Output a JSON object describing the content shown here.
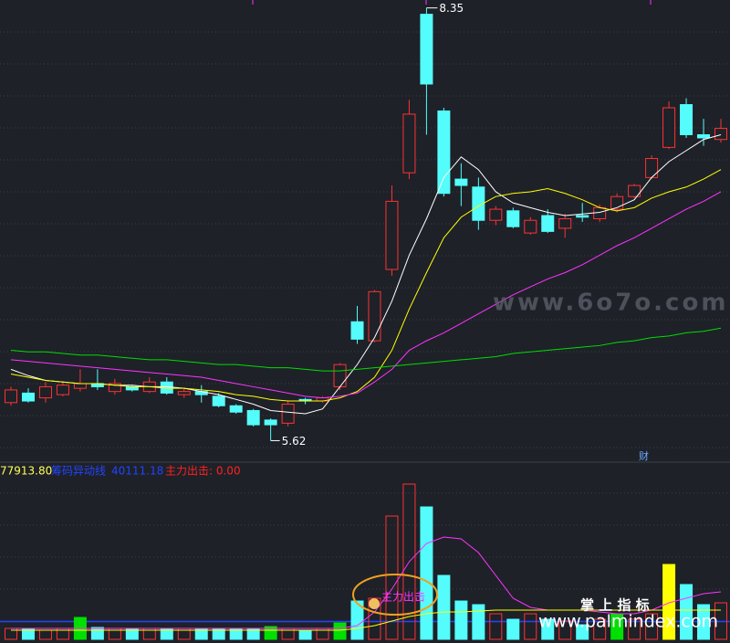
{
  "chart_data": [
    {
      "type": "candlestick",
      "open": [
        5.86,
        5.92,
        5.89,
        5.91,
        5.95,
        5.98,
        5.93,
        5.96,
        5.93,
        5.99,
        5.91,
        5.93,
        5.9,
        5.84,
        5.81,
        5.75,
        5.73,
        5.88,
        5.87,
        5.96,
        6.37,
        6.25,
        6.7,
        7.31,
        8.31,
        7.7,
        7.27,
        7.22,
        7.01,
        7.07,
        6.93,
        7.04,
        6.96,
        7.04,
        7.02,
        7.08,
        7.16,
        7.28,
        7.47,
        7.74,
        7.55,
        7.52
      ],
      "high": [
        5.96,
        5.95,
        5.99,
        5.99,
        6.07,
        6.07,
        6.01,
        5.97,
        6.02,
        6.02,
        5.95,
        5.97,
        5.92,
        5.85,
        5.82,
        5.76,
        5.87,
        5.89,
        5.9,
        6.11,
        6.47,
        6.57,
        7.23,
        7.77,
        8.35,
        7.72,
        7.37,
        7.28,
        7.1,
        7.09,
        7.03,
        7.08,
        7.05,
        7.12,
        7.11,
        7.18,
        7.24,
        7.42,
        7.76,
        7.78,
        7.65,
        7.65
      ],
      "low": [
        5.84,
        5.86,
        5.86,
        5.9,
        5.93,
        5.94,
        5.91,
        5.93,
        5.92,
        5.91,
        5.89,
        5.86,
        5.83,
        5.79,
        5.71,
        5.62,
        5.71,
        5.85,
        5.86,
        5.94,
        6.23,
        6.24,
        6.66,
        7.27,
        7.55,
        7.16,
        7.1,
        6.95,
        6.98,
        6.96,
        6.92,
        6.93,
        6.9,
        7.0,
        7.0,
        7.06,
        7.15,
        7.27,
        7.46,
        7.53,
        7.48,
        7.5
      ],
      "close": [
        5.94,
        5.87,
        5.96,
        5.97,
        5.98,
        5.96,
        5.98,
        5.94,
        5.99,
        5.92,
        5.93,
        5.91,
        5.84,
        5.8,
        5.72,
        5.72,
        5.85,
        5.87,
        5.89,
        6.1,
        6.26,
        6.56,
        7.13,
        7.68,
        7.87,
        7.18,
        7.23,
        7.01,
        7.08,
        6.97,
        7.01,
        6.94,
        7.02,
        7.03,
        7.09,
        7.16,
        7.23,
        7.4,
        7.72,
        7.55,
        7.53,
        7.59
      ],
      "up_color": "#ff3232",
      "down_color": "#54fcfc",
      "ylim": [
        5.49,
        8.4
      ],
      "lines": [
        {
          "color": "#ffffff",
          "values": [
            6.07,
            6.03,
            6.0,
            5.99,
            5.98,
            5.98,
            5.97,
            5.97,
            5.96,
            5.96,
            5.95,
            5.93,
            5.91,
            5.88,
            5.85,
            5.81,
            5.8,
            5.79,
            5.82,
            5.96,
            6.1,
            6.27,
            6.5,
            6.79,
            7.02,
            7.28,
            7.41,
            7.33,
            7.19,
            7.12,
            7.09,
            7.06,
            7.04,
            7.05,
            7.06,
            7.09,
            7.14,
            7.28,
            7.38,
            7.45,
            7.52,
            7.55
          ]
        },
        {
          "color": "#ffff00",
          "values": [
            6.04,
            6.02,
            6.0,
            5.99,
            5.98,
            5.98,
            5.97,
            5.96,
            5.96,
            5.95,
            5.95,
            5.94,
            5.93,
            5.91,
            5.9,
            5.88,
            5.87,
            5.87,
            5.87,
            5.89,
            5.93,
            6.02,
            6.19,
            6.45,
            6.68,
            6.9,
            7.03,
            7.1,
            7.16,
            7.18,
            7.19,
            7.21,
            7.18,
            7.14,
            7.09,
            7.07,
            7.09,
            7.15,
            7.19,
            7.22,
            7.27,
            7.33
          ]
        },
        {
          "color": "#ff33ff",
          "values": [
            6.13,
            6.12,
            6.11,
            6.1,
            6.09,
            6.08,
            6.07,
            6.06,
            6.05,
            6.04,
            6.03,
            6.02,
            6.0,
            5.98,
            5.96,
            5.94,
            5.92,
            5.9,
            5.89,
            5.9,
            5.92,
            5.99,
            6.07,
            6.19,
            6.25,
            6.3,
            6.36,
            6.42,
            6.48,
            6.54,
            6.59,
            6.64,
            6.68,
            6.73,
            6.79,
            6.85,
            6.9,
            6.96,
            7.02,
            7.08,
            7.13,
            7.19
          ]
        },
        {
          "color": "#00dd00",
          "values": [
            6.19,
            6.18,
            6.18,
            6.17,
            6.16,
            6.16,
            6.15,
            6.14,
            6.13,
            6.13,
            6.12,
            6.11,
            6.1,
            6.1,
            6.09,
            6.08,
            6.08,
            6.07,
            6.06,
            6.06,
            6.07,
            6.08,
            6.09,
            6.1,
            6.11,
            6.12,
            6.13,
            6.14,
            6.15,
            6.17,
            6.18,
            6.19,
            6.2,
            6.21,
            6.22,
            6.24,
            6.25,
            6.27,
            6.28,
            6.3,
            6.31,
            6.33
          ]
        }
      ]
    },
    {
      "type": "bar",
      "values": [
        24600,
        24600,
        20500,
        24600,
        49200,
        26700,
        24600,
        24600,
        24600,
        24600,
        24600,
        24600,
        24600,
        24600,
        24600,
        28700,
        24600,
        20500,
        24600,
        36900,
        86100,
        92300,
        276900,
        348700,
        297400,
        143600,
        86100,
        77900,
        57400,
        45100,
        57400,
        45100,
        41000,
        32800,
        45100,
        57400,
        45100,
        57400,
        168200,
        123100,
        77900,
        82000
      ],
      "colors": [
        "#ff3232",
        "#54fcfc",
        "#ff3232",
        "#ff3232",
        "#00e000",
        "#54fcfc",
        "#ff3232",
        "#54fcfc",
        "#ff3232",
        "#54fcfc",
        "#ff3232",
        "#54fcfc",
        "#54fcfc",
        "#54fcfc",
        "#54fcfc",
        "#00e000",
        "#ff3232",
        "#54fcfc",
        "#ff3232",
        "#00e000",
        "#54fcfc",
        "#ff3232",
        "#ff3232",
        "#ff3232",
        "#54fcfc",
        "#54fcfc",
        "#54fcfc",
        "#54fcfc",
        "#ff3232",
        "#54fcfc",
        "#ff3232",
        "#54fcfc",
        "#ff3232",
        "#54fcfc",
        "#ff3232",
        "#00e000",
        "#ff3232",
        "#ff3232",
        "#ffff00",
        "#54fcfc",
        "#54fcfc",
        "#ff3232"
      ],
      "up_color": "#ff3232",
      "ylim": [
        0,
        400000
      ],
      "lines": [
        {
          "color": "#ff33ff",
          "values": [
            24600,
            24600,
            24600,
            24600,
            24600,
            24600,
            24600,
            24600,
            24600,
            24600,
            24600,
            24600,
            24600,
            24600,
            24600,
            24600,
            24600,
            24600,
            24600,
            24600,
            30800,
            61500,
            112800,
            174300,
            215400,
            229700,
            225600,
            194800,
            143600,
            92300,
            71800,
            65600,
            65600,
            65600,
            61500,
            57400,
            57400,
            65600,
            82000,
            92300,
            102600,
            106700
          ]
        },
        {
          "color": "#ffff00",
          "values": [
            20500,
            20500,
            20500,
            20500,
            20500,
            20500,
            20500,
            20500,
            20500,
            20500,
            20500,
            20500,
            20500,
            20500,
            20500,
            20500,
            20500,
            20500,
            20500,
            20500,
            24600,
            30800,
            41000,
            51300,
            57400,
            61500,
            61500,
            63600,
            65600,
            65600,
            65600,
            65600,
            65600,
            65600,
            65600,
            65600,
            65600,
            65600,
            65600,
            65600,
            65600,
            65600
          ]
        }
      ],
      "header_value": {
        "value": 77913.8,
        "label": "77913.80"
      },
      "ref_line": {
        "name": "筹码异动线",
        "value": 40111.18,
        "color": "#2244ff"
      },
      "signal_header": "主力出击: 0.00"
    }
  ],
  "watermarks": [
    "www.6o7o.com",
    "掌 上 指 标",
    "www.palmindex.com"
  ],
  "annotations": {
    "finance": "财",
    "signal": "主力出击"
  }
}
